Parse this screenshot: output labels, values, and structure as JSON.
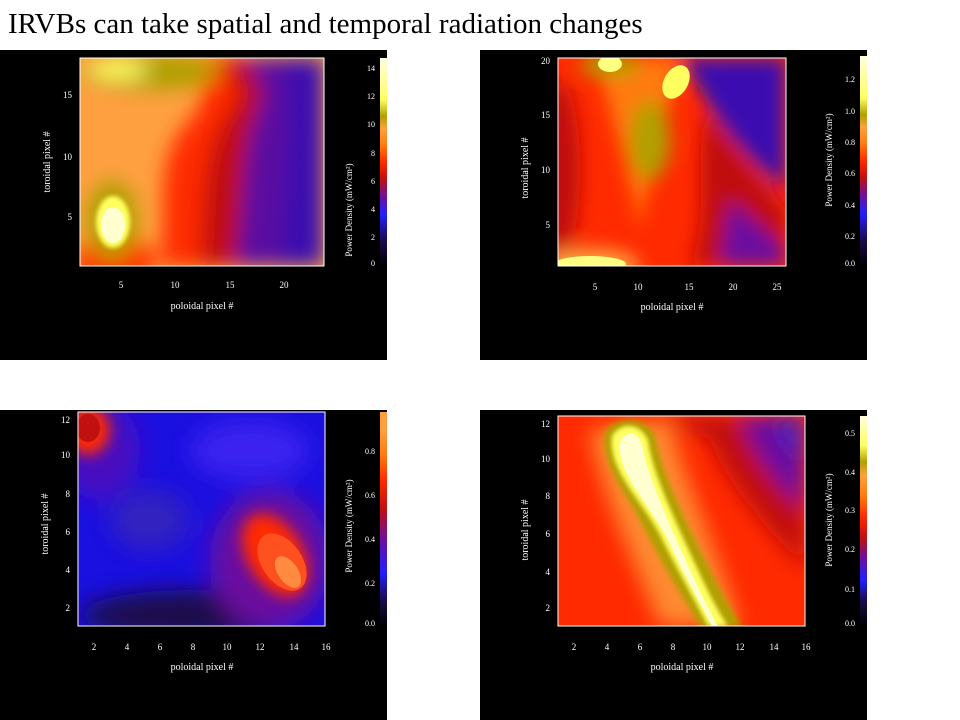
{
  "slide": {
    "title": "IRVBs can take spatial and temporal radiation changes"
  },
  "colors": {
    "background": "#000000",
    "colormap": [
      "#000000",
      "#1a0a4a",
      "#3a10b0",
      "#2020ff",
      "#6a10a0",
      "#c01010",
      "#ff2a00",
      "#ff7a10",
      "#ffa040",
      "#b0a000",
      "#ffff60",
      "#ffffe0"
    ]
  },
  "panels": [
    {
      "xlabel": "poloidal pixel #",
      "ylabel": "toroidal pixel #",
      "colorbar_label": "Power Density (mW/cm²)",
      "xticks": [
        "5",
        "10",
        "15",
        "20"
      ],
      "yticks": [
        "5",
        "10",
        "15"
      ],
      "cbar_ticks": [
        "0",
        "2",
        "4",
        "6",
        "8",
        "10",
        "12",
        "14"
      ],
      "cbar_max": 14.5
    },
    {
      "xlabel": "poloidal pixel #",
      "ylabel": "toroidal pixel #",
      "colorbar_label": "Power Density (mW/cm²)",
      "xticks": [
        "5",
        "10",
        "15",
        "20",
        "25"
      ],
      "yticks": [
        "5",
        "10",
        "15",
        "20"
      ],
      "cbar_ticks": [
        "0.0",
        "0.2",
        "0.4",
        "0.6",
        "0.8",
        "1.0",
        "1.2"
      ],
      "cbar_max": 1.35
    },
    {
      "xlabel": "poloidal pixel #",
      "ylabel": "toroidal pixel #",
      "colorbar_label": "Power Density (mW/cm²)",
      "xticks": [
        "2",
        "4",
        "6",
        "8",
        "10",
        "12",
        "14",
        "16"
      ],
      "yticks": [
        "2",
        "4",
        "6",
        "8",
        "10",
        "12"
      ],
      "cbar_ticks": [
        "0.0",
        "0.2",
        "0.4",
        "0.6",
        "0.8"
      ],
      "cbar_max": 0.95
    },
    {
      "xlabel": "poloidal pixel #",
      "ylabel": "toroidal pixel #",
      "colorbar_label": "Power Density (mW/cm²)",
      "xticks": [
        "2",
        "4",
        "6",
        "8",
        "10",
        "12",
        "14",
        "16"
      ],
      "yticks": [
        "2",
        "4",
        "6",
        "8",
        "10",
        "12"
      ],
      "cbar_ticks": [
        "0.0",
        "0.1",
        "0.2",
        "0.3",
        "0.4",
        "0.5"
      ],
      "cbar_max": 0.54
    }
  ]
}
